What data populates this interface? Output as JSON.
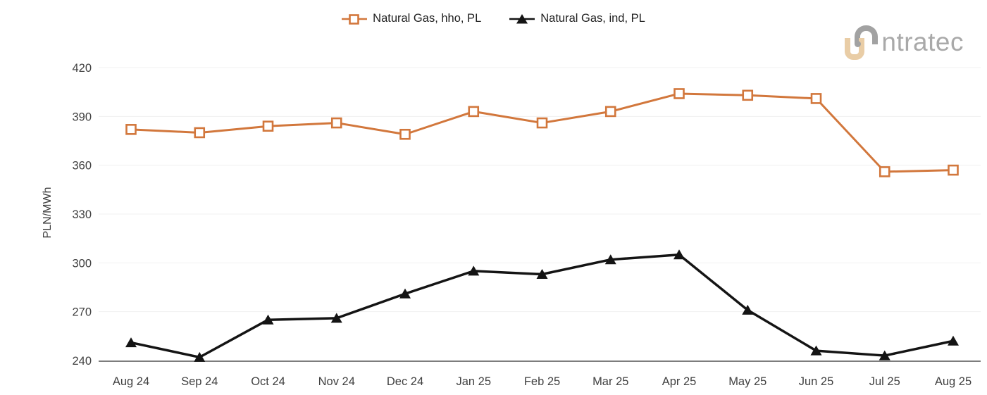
{
  "page": {
    "background": "#ffffff"
  },
  "logo": {
    "brand": "intratec",
    "text_after_mark": "ntratec",
    "gray": "#a2a2a2",
    "tan": "#e9cda6"
  },
  "chart_data": {
    "type": "line",
    "title": "",
    "xlabel": "",
    "ylabel": "PLN/MWh",
    "ylim": [
      240,
      420
    ],
    "yticks": [
      240,
      270,
      300,
      330,
      360,
      390,
      420
    ],
    "grid": "horizontal-light",
    "legend_position": "top-center",
    "categories": [
      "Aug 24",
      "Sep 24",
      "Oct 24",
      "Nov 24",
      "Dec 24",
      "Jan 25",
      "Feb 25",
      "Mar 25",
      "Apr 25",
      "May 25",
      "Jun 25",
      "Jul 25",
      "Aug 25"
    ],
    "series": [
      {
        "name": "Natural Gas, hho, PL",
        "color": "#d2773c",
        "marker": "open-square",
        "values": [
          382,
          380,
          384,
          386,
          379,
          393,
          386,
          393,
          404,
          403,
          401,
          356,
          357
        ]
      },
      {
        "name": "Natural Gas, ind, PL",
        "color": "#141414",
        "marker": "filled-triangle",
        "values": [
          251,
          242,
          265,
          266,
          281,
          295,
          293,
          302,
          305,
          271,
          246,
          243,
          252
        ]
      }
    ],
    "colors": {
      "gridline": "#f0f0f0",
      "axis_line": "#7d7d7d",
      "tick_text": "#414141"
    }
  }
}
